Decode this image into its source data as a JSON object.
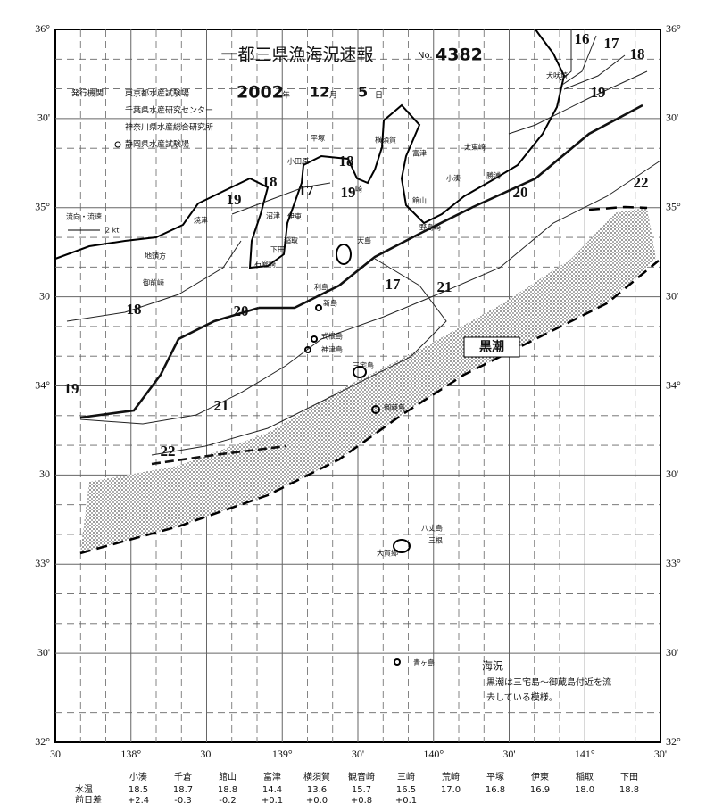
{
  "header": {
    "title": "一都三県漁海況速報",
    "number_prefix": "No.",
    "number": "4382",
    "date_year": "2002",
    "year_unit": "年",
    "date_month": "12",
    "month_unit": "月",
    "date_day": "5",
    "day_unit": "日",
    "issuer_label": "発行機関",
    "issuers": [
      "東京都水産試験場",
      "千葉県水産研究センター",
      "神奈川県水産総合研究所",
      "静岡県水産試験場"
    ]
  },
  "map": {
    "lat_labels_left": [
      "36°",
      "30'",
      "35°",
      "30",
      "34°",
      "30",
      "33°",
      "30'",
      "32°"
    ],
    "lat_labels_right": [
      "36°",
      "30'",
      "35°",
      "30'",
      "34°",
      "30'",
      "33°",
      "30'",
      "32°"
    ],
    "lon_labels": [
      "30",
      "138°",
      "30'",
      "139°",
      "30'",
      "140°",
      "30'",
      "141°",
      "30'"
    ],
    "isotherms": [
      "16",
      "17",
      "18",
      "19",
      "20",
      "22",
      "18",
      "17",
      "19",
      "18",
      "19",
      "21",
      "20",
      "18",
      "19",
      "21",
      "22",
      "17"
    ],
    "places": [
      "犬吠埼",
      "太東崎",
      "勝浦",
      "小湊",
      "平塚",
      "小田原",
      "横須賀",
      "富津",
      "館山",
      "野島崎",
      "三崎",
      "沼津",
      "焼津",
      "地頭方",
      "御前崎",
      "伊東",
      "稲取",
      "下田",
      "石廊崎",
      "大島",
      "利島",
      "新島",
      "式根島",
      "神津島",
      "三宅島",
      "御蔵島",
      "八丈島",
      "三根",
      "大賀郷",
      "青ヶ島"
    ],
    "kuroshio_label": "黒潮",
    "current_legend": [
      "流向・流速",
      "2 kt"
    ]
  },
  "note": {
    "title": "海況",
    "lines": [
      "黒潮は三宅島～御蔵島付近を流",
      "去している模様。"
    ]
  },
  "table": {
    "row_labels": [
      "水温",
      "前日差"
    ],
    "stations": [
      "小湊",
      "千倉",
      "館山",
      "富津",
      "横須賀",
      "観音崎",
      "三崎",
      "荒崎",
      "平塚",
      "伊東",
      "稲取",
      "下田"
    ],
    "temperature": [
      "18.5",
      "18.7",
      "18.8",
      "14.4",
      "13.6",
      "15.7",
      "16.5",
      "17.0",
      "16.8",
      "16.9",
      "18.0",
      "18.8"
    ],
    "change": [
      "+2.4",
      "-0.3",
      "-0.2",
      "+0.1",
      "+0.0",
      "+0.8",
      "+0.1"
    ]
  }
}
